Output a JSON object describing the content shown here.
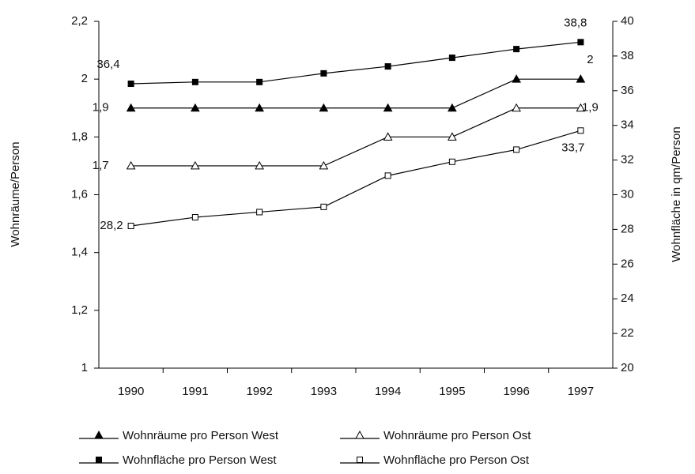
{
  "chart_data": {
    "type": "line",
    "ylabel": "Wohnräume/Person",
    "y2label": "Wohnfläche in qm/Person",
    "categories": [
      "1990",
      "1991",
      "1992",
      "1993",
      "1994",
      "1995",
      "1996",
      "1997"
    ],
    "ylim": [
      1,
      2.2
    ],
    "yticks": [
      {
        "value": 1,
        "label": "1"
      },
      {
        "value": 1.2,
        "label": "1,2"
      },
      {
        "value": 1.4,
        "label": "1,4"
      },
      {
        "value": 1.6,
        "label": "1,6"
      },
      {
        "value": 1.8,
        "label": "1,8"
      },
      {
        "value": 2,
        "label": "2"
      },
      {
        "value": 2.2,
        "label": "2,2"
      }
    ],
    "y2lim": [
      20,
      40
    ],
    "y2ticks": [
      20,
      22,
      24,
      26,
      28,
      30,
      32,
      34,
      36,
      38,
      40
    ],
    "legend": "bottom",
    "series": [
      {
        "name": "Wohnräume pro Person West",
        "color": "#000000",
        "marker": "triangle",
        "filled": true,
        "axis": "y",
        "values": [
          1.9,
          1.9,
          1.9,
          1.9,
          1.9,
          1.9,
          2,
          2
        ],
        "value_labels": [
          "1,9",
          null,
          null,
          null,
          null,
          null,
          null,
          "2"
        ]
      },
      {
        "name": "Wohnräume pro Person Ost",
        "color": "#000000",
        "marker": "triangle",
        "filled": false,
        "axis": "y",
        "values": [
          1.7,
          1.7,
          1.7,
          1.7,
          1.8,
          1.8,
          1.9,
          1.9
        ],
        "value_labels": [
          "1,7",
          null,
          null,
          null,
          null,
          null,
          null,
          "1,9"
        ]
      },
      {
        "name": "Wohnfläche pro Person West",
        "color": "#000000",
        "marker": "square",
        "filled": true,
        "axis": "y2",
        "values": [
          36.4,
          36.5,
          36.5,
          37.0,
          37.4,
          37.9,
          38.4,
          38.8
        ],
        "value_labels": [
          "36,4",
          null,
          null,
          null,
          null,
          null,
          null,
          "38,8"
        ]
      },
      {
        "name": "Wohnfläche pro Person Ost",
        "color": "#000000",
        "marker": "square",
        "filled": false,
        "axis": "y2",
        "values": [
          28.2,
          28.7,
          29.0,
          29.3,
          31.1,
          31.9,
          32.6,
          33.7
        ],
        "value_labels": [
          "28,2",
          null,
          null,
          null,
          null,
          null,
          null,
          "33,7"
        ]
      }
    ]
  }
}
